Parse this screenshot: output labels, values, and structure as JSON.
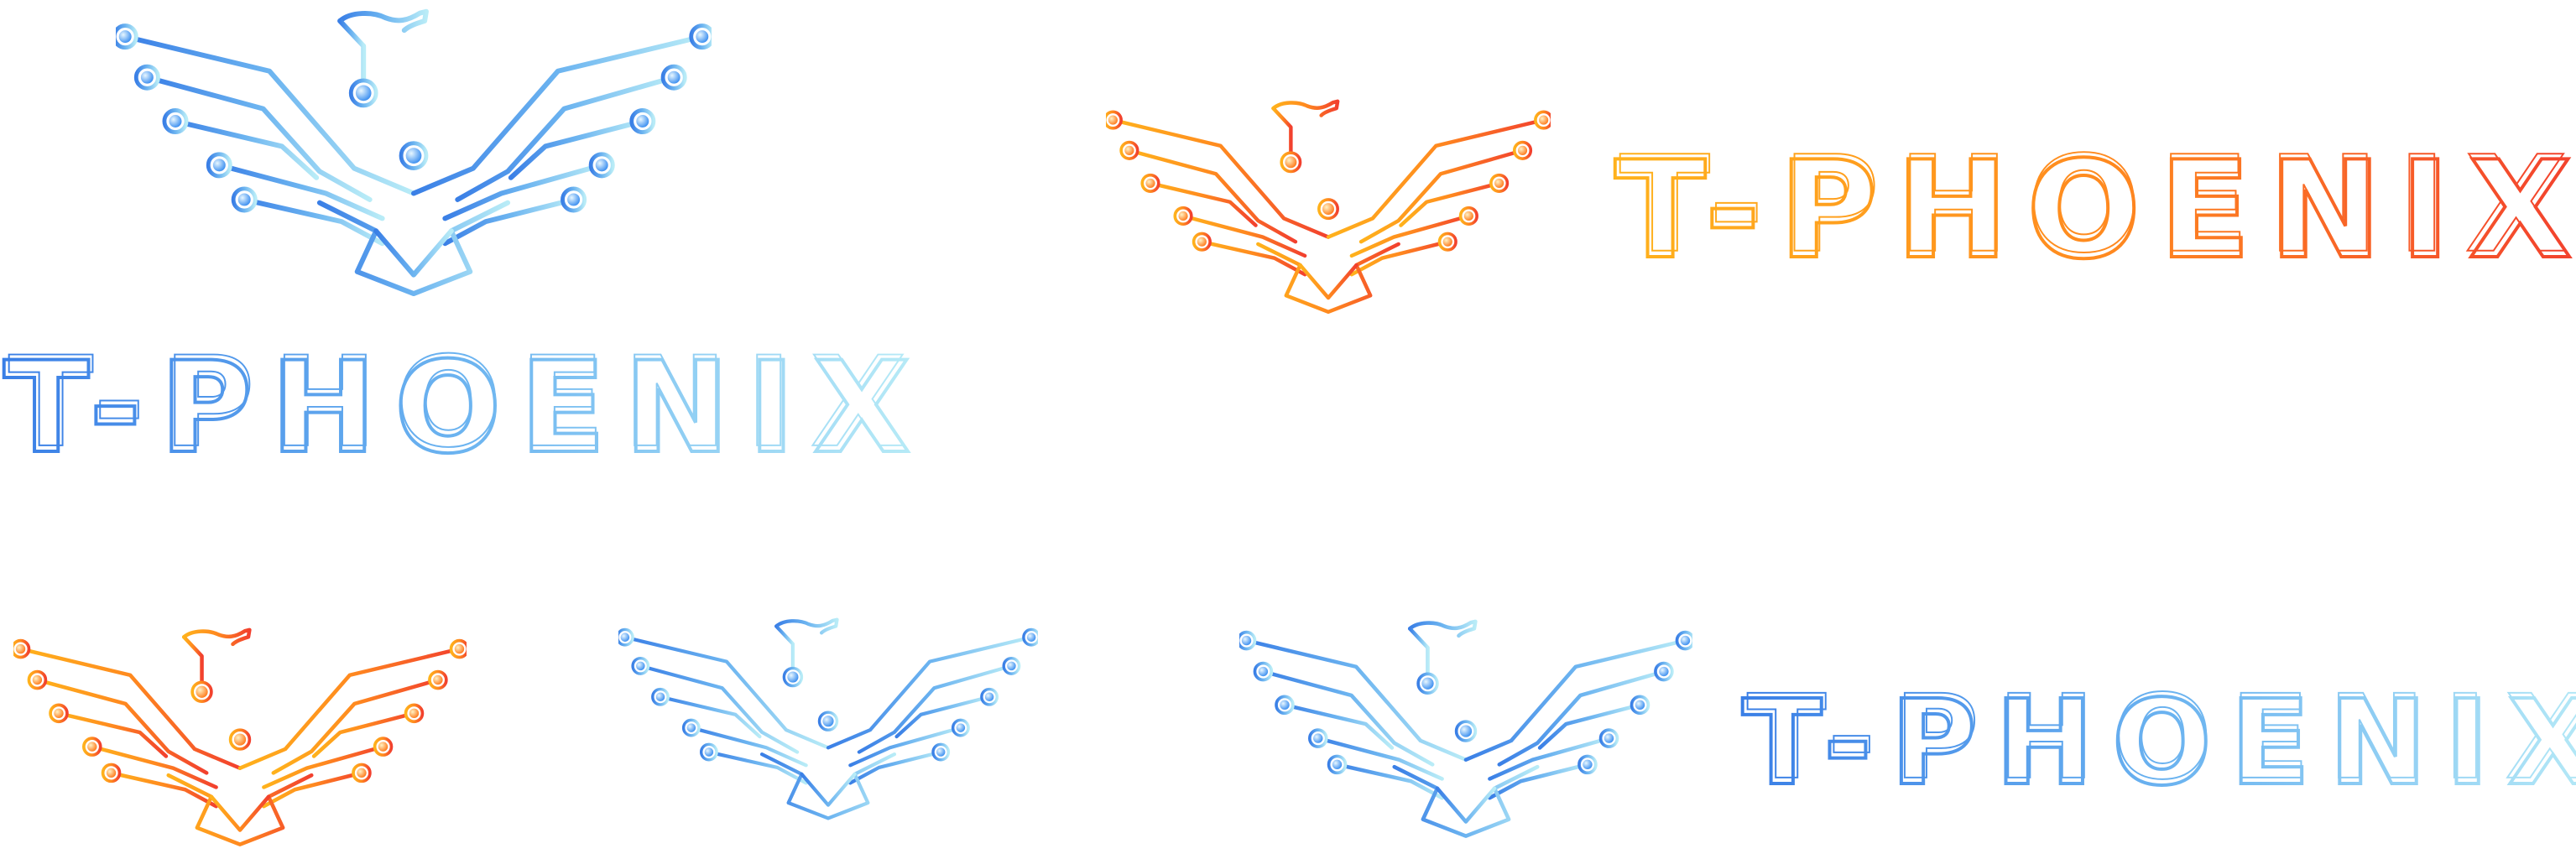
{
  "brand": {
    "wordmark": "T-PHOENIX"
  },
  "palettes": {
    "blue": {
      "from": "#3a7fe6",
      "mid": "#6cb4f0",
      "to": "#b9ecf7"
    },
    "orange": {
      "from": "#ffb21c",
      "mid": "#ff8a1f",
      "to": "#f2402e"
    }
  },
  "icons": {
    "emblem": "circuit-phoenix-icon",
    "wordmark": "maze-line-lettering"
  },
  "variants": [
    {
      "id": "blue-stacked",
      "palette": "blue",
      "layout": "stacked"
    },
    {
      "id": "orange-horizontal",
      "palette": "orange",
      "layout": "horizontal"
    },
    {
      "id": "orange-emblem",
      "palette": "orange",
      "layout": "emblem-only"
    },
    {
      "id": "blue-emblem",
      "palette": "blue",
      "layout": "emblem-only"
    },
    {
      "id": "blue-horizontal",
      "palette": "blue",
      "layout": "horizontal"
    }
  ]
}
